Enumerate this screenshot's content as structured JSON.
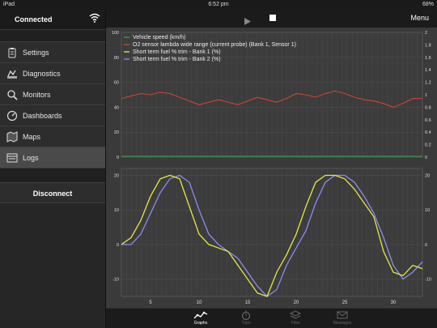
{
  "status": {
    "device": "iPad",
    "time": "6:52 pm",
    "battery": "68%"
  },
  "sidebar": {
    "connection": "Connected",
    "items": [
      {
        "label": "Settings",
        "icon": "clipboard-icon"
      },
      {
        "label": "Diagnostics",
        "icon": "engine-icon"
      },
      {
        "label": "Monitors",
        "icon": "magnifier-icon"
      },
      {
        "label": "Dashboards",
        "icon": "gauge-icon"
      },
      {
        "label": "Maps",
        "icon": "map-icon"
      },
      {
        "label": "Logs",
        "icon": "logs-icon"
      }
    ],
    "active_index": 5,
    "disconnect_label": "Disconnect"
  },
  "toolbar": {
    "menu_label": "Menu"
  },
  "tabs": [
    {
      "label": "Graphs",
      "icon": "graph-icon"
    },
    {
      "label": "Trips",
      "icon": "stopwatch-icon"
    },
    {
      "label": "Files",
      "icon": "layers-icon"
    },
    {
      "label": "Messages",
      "icon": "envelope-icon"
    }
  ],
  "colors": {
    "speed": "#2fa84f",
    "o2": "#cc4433",
    "bank1": "#e8e840",
    "bank2": "#8c8cf0",
    "grid": "#555555"
  },
  "chart_data": [
    {
      "type": "line",
      "title": "",
      "y_left": {
        "ticks": [
          0,
          20,
          40,
          60,
          80,
          100
        ]
      },
      "y_right": {
        "ticks": [
          0,
          0.2,
          0.4,
          0.6,
          0.8,
          1,
          1.2,
          1.4,
          1.6,
          1.8,
          2
        ]
      },
      "legend": [
        "Vehicle speed (km/h)",
        "O2 sensor lambda wide range (current probe)  (Bank 1, Sensor 1)",
        "Short term fuel % trim - Bank 1 (%)",
        "Short term fuel % trim - Bank 2 (%)"
      ],
      "legend_placement": "top-left",
      "series": [
        {
          "name": "O2 sensor lambda wide range (current probe)  (Bank 1, Sensor 1)",
          "x": [
            2,
            3,
            4,
            5,
            6,
            7,
            8,
            9,
            10,
            11,
            12,
            13,
            14,
            15,
            16,
            17,
            18,
            19,
            20,
            21,
            22,
            23,
            24,
            25,
            26,
            27,
            28,
            29,
            30,
            31,
            32,
            33
          ],
          "y": [
            47,
            49,
            51,
            50,
            52,
            51,
            48,
            45,
            42,
            44,
            46,
            44,
            42,
            45,
            48,
            46,
            44,
            47,
            51,
            50,
            48,
            51,
            53,
            51,
            48,
            46,
            45,
            43,
            40,
            43,
            47,
            47
          ]
        }
      ]
    },
    {
      "type": "line",
      "y": {
        "ticks": [
          -10,
          0,
          10,
          20
        ],
        "ylim": [
          -15,
          22
        ]
      },
      "x": {
        "ticks": [
          5,
          10,
          15,
          20,
          25,
          30
        ],
        "xlim": [
          2,
          33
        ]
      },
      "series": [
        {
          "name": "Short term fuel % trim - Bank 1 (%)",
          "x": [
            2,
            3,
            4,
            5,
            6,
            7,
            8,
            9,
            10,
            11,
            12,
            13,
            14,
            15,
            16,
            17,
            18,
            19,
            20,
            21,
            22,
            23,
            24,
            25,
            26,
            27,
            28,
            29,
            30,
            31,
            32,
            33
          ],
          "y": [
            0,
            2,
            7,
            14,
            19,
            20,
            19,
            11,
            3,
            0,
            -1,
            -2,
            -6,
            -10,
            -14,
            -15,
            -8,
            -3,
            3,
            11,
            18,
            20,
            20,
            19,
            16,
            12,
            8,
            -2,
            -8,
            -9,
            -6,
            -7
          ]
        },
        {
          "name": "Short term fuel % trim - Bank 2 (%)",
          "x": [
            2,
            3,
            4,
            5,
            6,
            7,
            8,
            9,
            10,
            11,
            12,
            13,
            14,
            15,
            16,
            17,
            18,
            19,
            20,
            21,
            22,
            23,
            24,
            25,
            26,
            27,
            28,
            29,
            30,
            31,
            32,
            33
          ],
          "y": [
            0,
            0,
            3,
            9,
            15,
            19,
            20,
            18,
            10,
            3,
            0,
            -2,
            -4,
            -8,
            -12,
            -15,
            -13,
            -6,
            -1,
            4,
            12,
            18,
            20,
            20,
            18,
            14,
            9,
            2,
            -6,
            -10,
            -8,
            -5
          ]
        }
      ]
    }
  ]
}
